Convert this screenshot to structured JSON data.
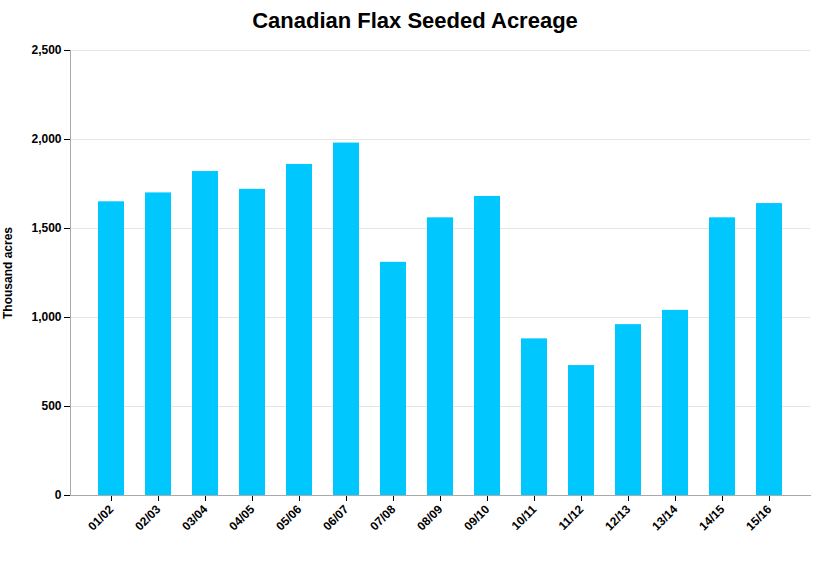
{
  "chart_data": {
    "type": "bar",
    "title": "Canadian Flax Seeded Acreage",
    "ylabel": "Thousand acres",
    "categories": [
      "01/02",
      "02/03",
      "03/04",
      "04/05",
      "05/06",
      "06/07",
      "07/08",
      "08/09",
      "09/10",
      "10/11",
      "11/12",
      "12/13",
      "13/14",
      "14/15",
      "15/16"
    ],
    "values": [
      1650,
      1700,
      1820,
      1720,
      1860,
      1980,
      1310,
      1560,
      1680,
      880,
      730,
      960,
      1040,
      1560,
      1640
    ],
    "color": "#00C8FF",
    "ylim": [
      0,
      2500
    ],
    "yticks": [
      0,
      500,
      {
        "value": 1000,
        "label": "1,000"
      },
      {
        "value": 1500,
        "label": "1,500"
      },
      {
        "value": 2000,
        "label": "2,000"
      },
      {
        "value": 2500,
        "label": "2,500"
      }
    ],
    "grid": true
  }
}
